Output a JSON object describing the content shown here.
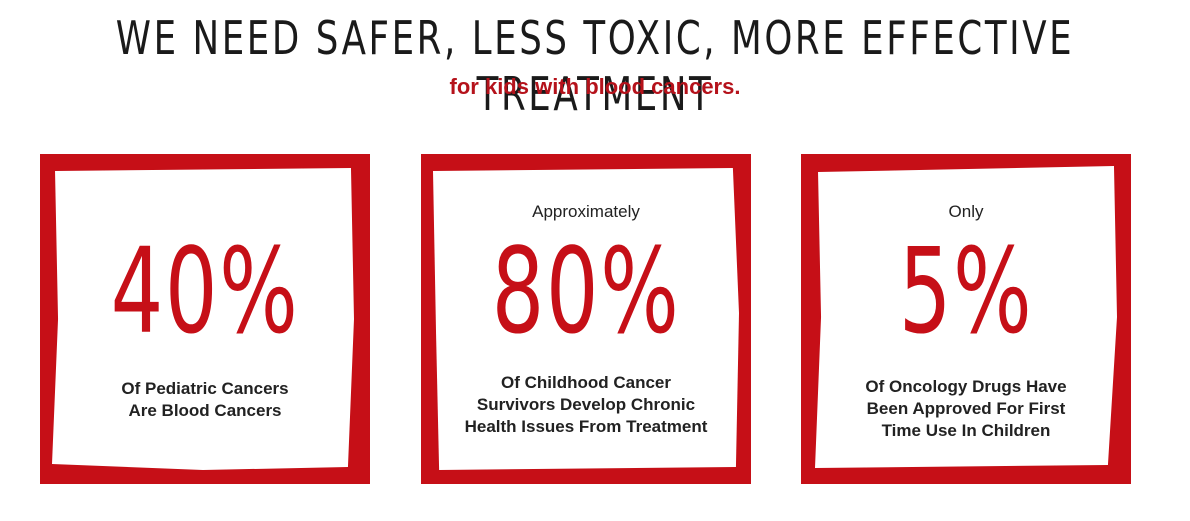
{
  "header": {
    "headline": "WE NEED SAFER, LESS TOXIC, MORE EFFECTIVE TREATMENT",
    "subheadline": "for kids with blood cancers."
  },
  "cards": [
    {
      "prefix": "",
      "stat": "40%",
      "description_lines": [
        "Of Pediatric Cancers",
        "Are Blood Cancers"
      ]
    },
    {
      "prefix": "Approximately",
      "stat": "80%",
      "description_lines": [
        "Of Childhood Cancer",
        "Survivors Develop Chronic",
        "Health Issues From Treatment"
      ]
    },
    {
      "prefix": "Only",
      "stat": "5%",
      "description_lines": [
        "Of Oncology Drugs Have",
        "Been Approved For First",
        "Time Use In Children"
      ]
    }
  ],
  "colors": {
    "accent_red": "#c60f17",
    "subhead_red": "#b5121b",
    "text_dark": "#222222"
  }
}
